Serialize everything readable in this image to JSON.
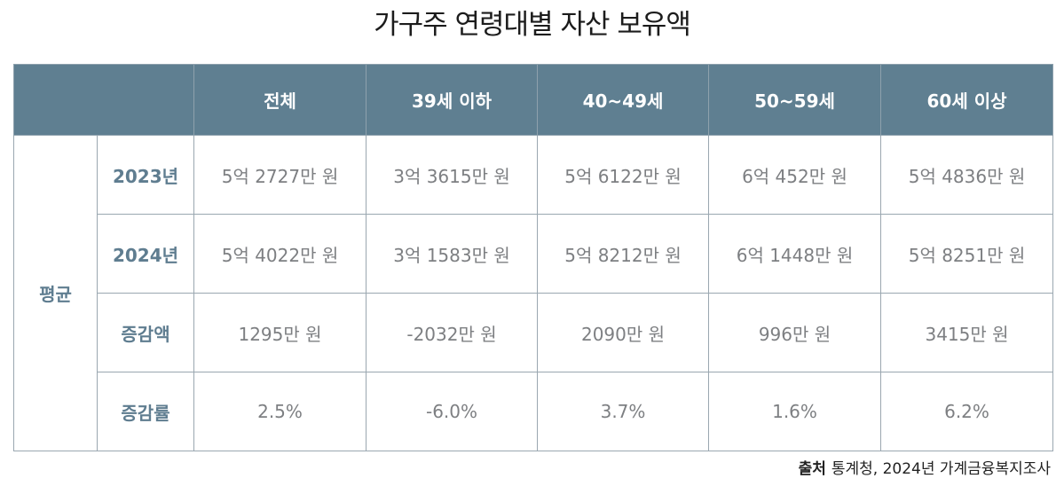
{
  "title": "가구주 연령대별 자산 보유액",
  "columns": [
    "전체",
    "39세 이하",
    "40~49세",
    "50~59세",
    "60세 이상"
  ],
  "group_label": "평균",
  "rows": [
    {
      "label": "2023년",
      "cells": [
        "5억 2727만 원",
        "3억 3615만 원",
        "5억 6122만 원",
        "6억 452만 원",
        "5억 4836만 원"
      ]
    },
    {
      "label": "2024년",
      "cells": [
        "5억 4022만 원",
        "3억 1583만 원",
        "5억 8212만 원",
        "6억 1448만 원",
        "5억 8251만 원"
      ]
    },
    {
      "label": "증감액",
      "cells": [
        "1295만 원",
        "-2032만 원",
        "2090만 원",
        "996만 원",
        "3415만 원"
      ]
    },
    {
      "label": "증감률",
      "cells": [
        "2.5%",
        "-6.0%",
        "3.7%",
        "1.6%",
        "6.2%"
      ]
    }
  ],
  "source": {
    "label": "출처",
    "text": "통계청, 2024년 가계금융복지조사"
  },
  "colors": {
    "header_bg": "#5f7f91",
    "label_text": "#5f7d90",
    "cell_text": "#7d7f82"
  }
}
